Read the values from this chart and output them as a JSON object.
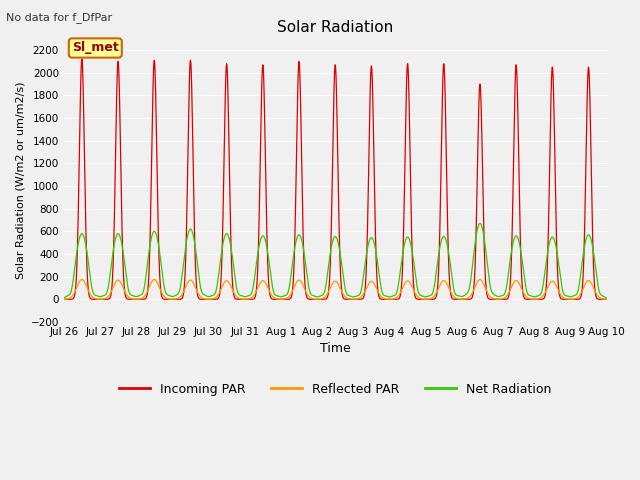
{
  "title": "Solar Radiation",
  "subtitle": "No data for f_DfPar",
  "xlabel": "Time",
  "ylabel": "Solar Radiation (W/m2 or um/m2/s)",
  "ylim": [
    -200,
    2300
  ],
  "yticks": [
    -200,
    0,
    200,
    400,
    600,
    800,
    1000,
    1200,
    1400,
    1600,
    1800,
    2000,
    2200
  ],
  "xtick_labels": [
    "Jul 26",
    "Jul 27",
    "Jul 28",
    "Jul 29",
    "Jul 30",
    "Jul 31",
    "Aug 1",
    "Aug 2",
    "Aug 3",
    "Aug 4",
    "Aug 5",
    "Aug 6",
    "Aug 7",
    "Aug 8",
    "Aug 9",
    "Aug 10"
  ],
  "num_days": 15,
  "background_color": "#f0f0f0",
  "plot_bg_color": "#f0f0f0",
  "legend_label_incoming": "Incoming PAR",
  "legend_label_reflected": "Reflected PAR",
  "legend_label_net": "Net Radiation",
  "line_color_incoming": "#dd0000",
  "line_color_reflected": "#ff9900",
  "line_color_net": "#33cc00",
  "annotation_box_label": "Sl_met",
  "annotation_box_color": "#ffff99",
  "annotation_box_edge": "#cc6600",
  "incoming_peaks": [
    2120,
    2100,
    2110,
    2110,
    2080,
    2070,
    2100,
    2070,
    2060,
    2080,
    2080,
    1900,
    2070,
    2050,
    2050
  ],
  "net_peaks": [
    580,
    580,
    600,
    620,
    580,
    560,
    570,
    555,
    545,
    550,
    555,
    670,
    560,
    550,
    570
  ],
  "reflected_peaks": [
    175,
    170,
    175,
    170,
    165,
    165,
    170,
    160,
    158,
    163,
    165,
    175,
    165,
    160,
    165
  ]
}
